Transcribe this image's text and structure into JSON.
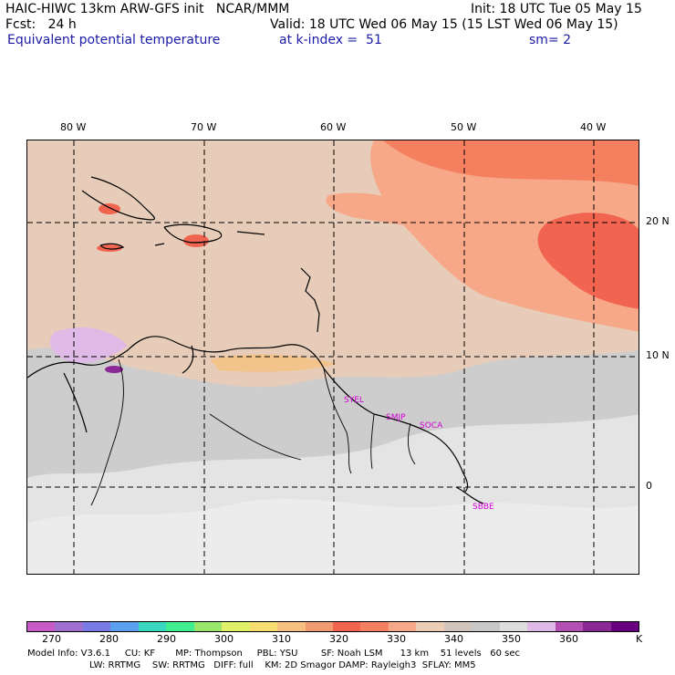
{
  "header": {
    "line1_left": "HAIC-HIWC 13km ARW-GFS init   NCAR/MMM",
    "line1_right": "Init: 18 UTC Tue 05 May 15",
    "line2_left": "Fcst:   24 h",
    "line2_right": "Valid: 18 UTC Wed 06 May 15 (15 LST Wed 06 May 15)",
    "line3_left": "Equivalent potential temperature",
    "line3_mid": "at k-index =  51",
    "line3_right": "sm= 2"
  },
  "longitude_labels": [
    "80 W",
    "70 W",
    "60 W",
    "50 W",
    "40 W"
  ],
  "latitude_labels": [
    "20 N",
    "10 N",
    "0"
  ],
  "stations": [
    "SYEL",
    "SMJP",
    "SOCA",
    "SBBE"
  ],
  "colorbar": {
    "colors": [
      "#c85ac8",
      "#a070d0",
      "#7a7ae6",
      "#5aa0ee",
      "#3ad7c0",
      "#40ee90",
      "#9ae66a",
      "#e0f068",
      "#f6dd70",
      "#f5c080",
      "#f29a70",
      "#f06450",
      "#f58060",
      "#f7a888",
      "#ebcdb5",
      "#d0c4bc",
      "#c8c8c8",
      "#dedede",
      "#e0bae6",
      "#b450b4",
      "#8a2896",
      "#6a0080"
    ],
    "labels": [
      "270",
      "280",
      "290",
      "300",
      "310",
      "320",
      "330",
      "340",
      "350",
      "360"
    ],
    "unit": "K"
  },
  "footer": {
    "line1": "Model Info: V3.6.1     CU: KF       MP: Thompson     PBL: YSU        SF: Noah LSM      13 km    51 levels   60 sec",
    "line2": "LW: RRTMG    SW: RRTMG   DIFF: full    KM: 2D Smagor DAMP: Rayleigh3  SFLAY: MM5"
  }
}
